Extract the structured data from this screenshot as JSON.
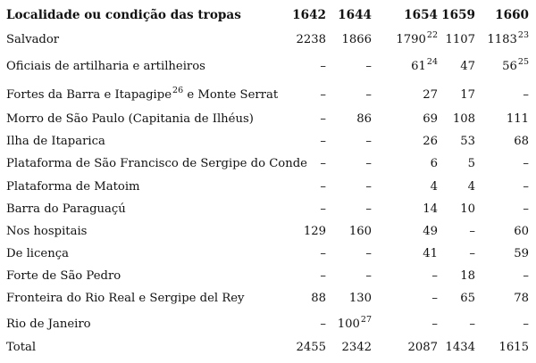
{
  "table": {
    "header": {
      "label": "Localidade ou condição das tropas",
      "years": [
        "1642",
        "1644",
        "1654",
        "1659",
        "1660"
      ]
    },
    "rows": [
      {
        "label": "Salvador",
        "values": [
          "2238",
          "1866",
          "1790",
          "1107",
          "1183"
        ],
        "notes": [
          "",
          "",
          "22",
          "",
          "23"
        ]
      },
      {
        "label": "Oficiais de artilharia e artilheiros",
        "values": [
          "–",
          "–",
          "61",
          "47",
          "56"
        ],
        "notes": [
          "",
          "",
          "24",
          "",
          "25"
        ]
      },
      {
        "label": "Fortes da Barra e Itapagipe",
        "label_note": "26",
        "label_suffix": " e Monte Serrat",
        "values": [
          "–",
          "–",
          "27",
          "17",
          "–"
        ],
        "notes": [
          "",
          "",
          "",
          "",
          ""
        ]
      },
      {
        "label": "Morro de São Paulo (Capitania de Ilhéus)",
        "values": [
          "–",
          "86",
          "69",
          "108",
          "111"
        ],
        "notes": [
          "",
          "",
          "",
          "",
          ""
        ]
      },
      {
        "label": "Ilha de Itaparica",
        "values": [
          "–",
          "–",
          "26",
          "53",
          "68"
        ],
        "notes": [
          "",
          "",
          "",
          "",
          ""
        ]
      },
      {
        "label": "Plataforma de São Francisco de Sergipe do Conde",
        "values": [
          "–",
          "–",
          "6",
          "5",
          "–"
        ],
        "notes": [
          "",
          "",
          "",
          "",
          ""
        ]
      },
      {
        "label": "Plataforma de Matoim",
        "values": [
          "–",
          "–",
          "4",
          "4",
          "–"
        ],
        "notes": [
          "",
          "",
          "",
          "",
          ""
        ]
      },
      {
        "label": "Barra do Paraguaçú",
        "values": [
          "–",
          "–",
          "14",
          "10",
          "–"
        ],
        "notes": [
          "",
          "",
          "",
          "",
          ""
        ]
      },
      {
        "label": "Nos hospitais",
        "values": [
          "129",
          "160",
          "49",
          "–",
          "60"
        ],
        "notes": [
          "",
          "",
          "",
          "",
          ""
        ]
      },
      {
        "label": "De licença",
        "values": [
          "–",
          "–",
          "41",
          "–",
          "59"
        ],
        "notes": [
          "",
          "",
          "",
          "",
          ""
        ]
      },
      {
        "label": "Forte de São Pedro",
        "values": [
          "–",
          "–",
          "–",
          "18",
          "–"
        ],
        "notes": [
          "",
          "",
          "",
          "",
          ""
        ]
      },
      {
        "label": "Fronteira do Rio Real e Sergipe del Rey",
        "values": [
          "88",
          "130",
          "–",
          "65",
          "78"
        ],
        "notes": [
          "",
          "",
          "",
          "",
          ""
        ]
      },
      {
        "label": "Rio de Janeiro",
        "values": [
          "–",
          "100",
          "–",
          "–",
          "–"
        ],
        "notes": [
          "",
          "27",
          "",
          "",
          ""
        ]
      },
      {
        "label": "Total",
        "values": [
          "2455",
          "2342",
          "2087",
          "1434",
          "1615"
        ],
        "notes": [
          "",
          "",
          "",
          "",
          ""
        ]
      }
    ]
  }
}
